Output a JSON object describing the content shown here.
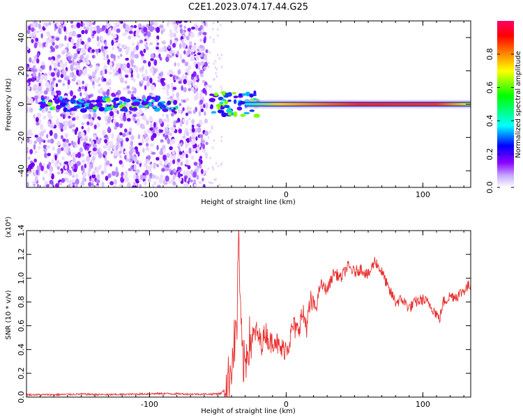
{
  "title": "C2E1.2023.074.17.44.G25",
  "chart_data": [
    {
      "type": "heatmap",
      "xlabel": "Height of straight line (km)",
      "ylabel": "Frequency (Hz)",
      "xlim": [
        -190,
        135
      ],
      "ylim": [
        -50,
        50
      ],
      "xticks": [
        -100,
        0,
        100
      ],
      "yticks": [
        -40,
        -20,
        0,
        20,
        40
      ],
      "colorbar": {
        "label": "Normalized spectral amplitude",
        "range": [
          0,
          1
        ],
        "ticks": [
          0.0,
          0.2,
          0.4,
          0.6,
          0.8
        ]
      },
      "description_features": {
        "noise_region_x": [
          -190,
          -58
        ],
        "tone_frequency_hz": 0,
        "steady_tone_x": [
          -30,
          135
        ]
      }
    },
    {
      "type": "line",
      "xlabel": "Height of straight line (km)",
      "ylabel": "SNR (10 * v/v)",
      "y_multiplier": "(x10⁴)",
      "xlim": [
        -190,
        135
      ],
      "ylim": [
        0,
        1.4
      ],
      "xticks": [
        -100,
        0,
        100
      ],
      "yticks": [
        0.0,
        0.2,
        0.4,
        0.6,
        0.8,
        1.0,
        1.2,
        1.4
      ],
      "series": [
        {
          "color": "#e8302f",
          "x": [
            -190,
            -170,
            -150,
            -130,
            -110,
            -90,
            -70,
            -55,
            -48,
            -45,
            -42,
            -40,
            -38,
            -36,
            -35,
            -33,
            -31,
            -30,
            -28,
            -25,
            -22,
            -18,
            -15,
            -12,
            -8,
            -5,
            -2,
            2,
            5,
            8,
            12,
            15,
            18,
            22,
            25,
            30,
            35,
            40,
            45,
            50,
            55,
            60,
            65,
            70,
            72,
            75,
            78,
            80,
            85,
            90,
            95,
            100,
            105,
            110,
            112,
            115,
            120,
            125,
            130,
            135
          ],
          "y": [
            0.02,
            0.02,
            0.025,
            0.02,
            0.025,
            0.03,
            0.025,
            0.025,
            0.03,
            0.06,
            0.15,
            0.3,
            0.45,
            0.6,
            1.4,
            0.5,
            0.25,
            0.3,
            0.45,
            0.5,
            0.55,
            0.45,
            0.55,
            0.45,
            0.5,
            0.4,
            0.4,
            0.45,
            0.6,
            0.55,
            0.7,
            0.6,
            0.8,
            0.75,
            0.95,
            0.9,
            1.05,
            1.0,
            1.1,
            1.05,
            1.08,
            1.02,
            1.15,
            1.05,
            1.0,
            0.9,
            0.85,
            0.8,
            0.82,
            0.75,
            0.8,
            0.82,
            0.78,
            0.7,
            0.65,
            0.8,
            0.85,
            0.85,
            0.9,
            0.95
          ]
        }
      ]
    }
  ]
}
